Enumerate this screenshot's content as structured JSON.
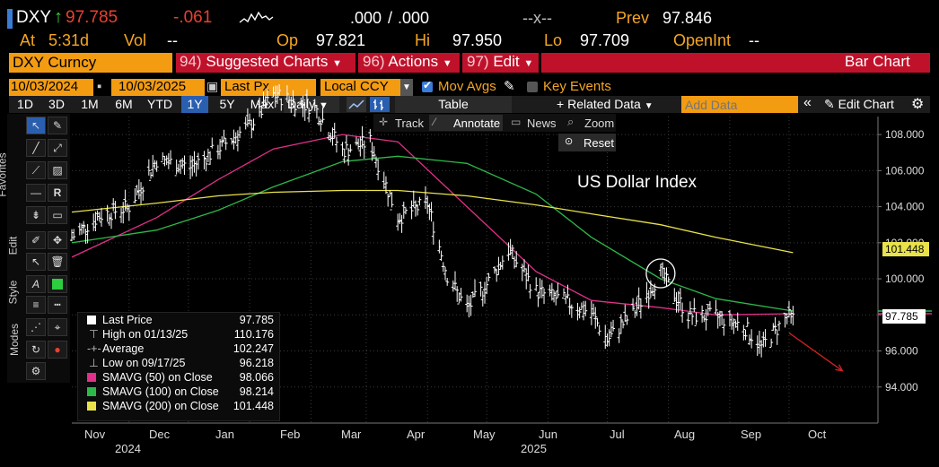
{
  "header": {
    "ticker": "DXY",
    "arrow": "↑",
    "last": "97.785",
    "change": "-.061",
    "bidask1": ".000",
    "sep": "/",
    "bidask2": ".000",
    "x_label": "--x--",
    "prev_label": "Prev",
    "prev_value": "97.846",
    "at_label": "At",
    "at_value": "5:31d",
    "vol_label": "Vol",
    "vol_value": "--",
    "op_label": "Op",
    "op_value": "97.821",
    "hi_label": "Hi",
    "hi_value": "97.950",
    "lo_label": "Lo",
    "lo_value": "97.709",
    "openint_label": "OpenInt",
    "openint_value": "--"
  },
  "menubar": {
    "security": "DXY Curncy",
    "suggested_num": "94)",
    "suggested": "Suggested Charts",
    "actions_num": "96)",
    "actions": "Actions",
    "edit_num": "97)",
    "edit": "Edit",
    "chart_type": "Bar Chart"
  },
  "params": {
    "date_from": "10/03/2024",
    "date_to": "10/03/2025",
    "field": "Last Px",
    "currency": "Local CCY",
    "mov_avgs": "Mov Avgs",
    "key_events": "Key Events"
  },
  "toolbar": {
    "periods": [
      "1D",
      "3D",
      "1M",
      "6M",
      "YTD",
      "1Y",
      "5Y",
      "Max"
    ],
    "frequency": "Daily",
    "table": "Table",
    "related_data": "Related Data",
    "add_data_placeholder": "Add Data",
    "edit_chart": "Edit Chart"
  },
  "chart_toolbar": {
    "track": "Track",
    "annotate": "Annotate",
    "news": "News",
    "zoom": "Zoom",
    "reset": "Reset"
  },
  "side_tabs": [
    "Favorites",
    "Edit",
    "Style",
    "Modes"
  ],
  "chart_data": {
    "type": "line",
    "title": "US Dollar Index",
    "ylim": [
      92.0,
      109.0
    ],
    "yticks": [
      "108.000",
      "106.000",
      "104.000",
      "102.000",
      "100.000",
      "98.000",
      "96.000",
      "94.000"
    ],
    "ytick_values": [
      108,
      106,
      104,
      102,
      100,
      98,
      96,
      94
    ],
    "x_months": [
      "Nov",
      "Dec",
      "Jan",
      "Feb",
      "Mar",
      "Apr",
      "May",
      "Jun",
      "Jul",
      "Aug",
      "Sep",
      "Oct"
    ],
    "x_years": [
      "2024",
      "2025"
    ],
    "right_labels": [
      {
        "text": "101.448",
        "value": 101.448,
        "color": "#f5e35a"
      },
      {
        "text": "97.785",
        "value": 97.785,
        "color": "#ffffff"
      }
    ],
    "series": [
      {
        "name": "Last Price",
        "color": "#ffffff",
        "x": [
          "2024-10-03",
          "2024-10-17",
          "2024-11-01",
          "2024-11-15",
          "2024-12-02",
          "2024-12-16",
          "2025-01-02",
          "2025-01-13",
          "2025-02-03",
          "2025-02-17",
          "2025-03-03",
          "2025-03-17",
          "2025-04-01",
          "2025-04-11",
          "2025-04-21",
          "2025-05-01",
          "2025-05-12",
          "2025-05-26",
          "2025-06-09",
          "2025-06-23",
          "2025-07-01",
          "2025-07-14",
          "2025-07-28",
          "2025-08-11",
          "2025-08-25",
          "2025-09-08",
          "2025-09-17",
          "2025-09-30",
          "2025-10-03"
        ],
        "values": [
          102.3,
          103.5,
          104.0,
          106.6,
          106.2,
          107.2,
          108.6,
          110.2,
          109.5,
          107.1,
          107.6,
          103.4,
          104.2,
          100.2,
          98.3,
          99.7,
          101.6,
          99.3,
          98.8,
          98.1,
          96.6,
          98.1,
          100.3,
          98.0,
          97.9,
          97.4,
          96.2,
          97.9,
          97.785
        ]
      },
      {
        "name": "SMAVG (50) on Close",
        "color": "#e0308a",
        "x": [
          "2024-10-03",
          "2024-11-15",
          "2024-12-16",
          "2025-01-13",
          "2025-02-17",
          "2025-03-17",
          "2025-04-21",
          "2025-05-26",
          "2025-06-23",
          "2025-07-28",
          "2025-08-25",
          "2025-10-03"
        ],
        "values": [
          101.2,
          103.4,
          105.5,
          107.2,
          108.0,
          107.6,
          104.0,
          100.4,
          98.8,
          98.4,
          98.0,
          98.066
        ]
      },
      {
        "name": "SMAVG (100) on Close",
        "color": "#2db84a",
        "x": [
          "2024-10-03",
          "2024-11-15",
          "2024-12-16",
          "2025-01-13",
          "2025-02-17",
          "2025-03-17",
          "2025-04-21",
          "2025-05-26",
          "2025-06-23",
          "2025-07-28",
          "2025-08-25",
          "2025-10-03"
        ],
        "values": [
          102.0,
          102.7,
          103.8,
          105.1,
          106.5,
          106.8,
          106.4,
          104.7,
          102.3,
          100.0,
          98.9,
          98.214
        ]
      },
      {
        "name": "SMAVG (200) on Close",
        "color": "#e9e24a",
        "x": [
          "2024-10-03",
          "2024-11-15",
          "2024-12-16",
          "2025-01-13",
          "2025-02-17",
          "2025-03-17",
          "2025-04-21",
          "2025-05-26",
          "2025-06-23",
          "2025-07-28",
          "2025-08-25",
          "2025-10-03"
        ],
        "values": [
          103.7,
          104.2,
          104.6,
          104.8,
          104.9,
          104.9,
          104.6,
          104.1,
          103.6,
          103.0,
          102.3,
          101.448
        ]
      }
    ],
    "legend": [
      {
        "label": "Last Price",
        "value": "97.785",
        "color": "#ffffff",
        "symbol": "box"
      },
      {
        "label": "High on 01/13/25",
        "value": "110.176",
        "color": "",
        "symbol": "high"
      },
      {
        "label": "Average",
        "value": "102.247",
        "color": "",
        "symbol": "avg"
      },
      {
        "label": "Low on 09/17/25",
        "value": "96.218",
        "color": "",
        "symbol": "low"
      },
      {
        "label": "SMAVG (50)  on Close",
        "value": "98.066",
        "color": "#e0308a",
        "symbol": "box"
      },
      {
        "label": "SMAVG (100)  on Close",
        "value": "98.214",
        "color": "#2db84a",
        "symbol": "box"
      },
      {
        "label": "SMAVG (200)  on Close",
        "value": "101.448",
        "color": "#e9e24a",
        "symbol": "box"
      }
    ],
    "grid": true,
    "legend_placement": "bottom-left"
  }
}
